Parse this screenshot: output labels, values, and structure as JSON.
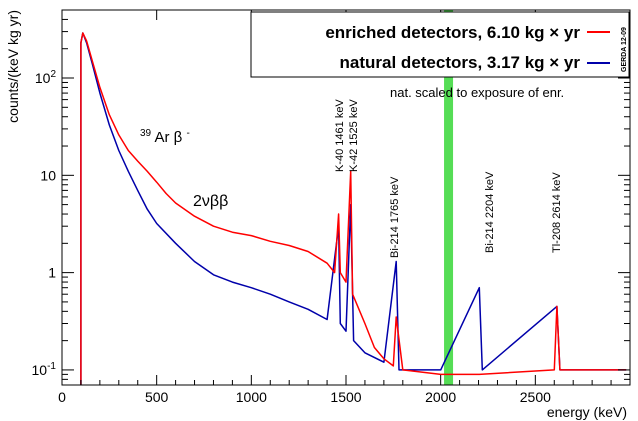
{
  "chart_data": {
    "type": "line",
    "xlabel": "energy (keV)",
    "ylabel": "counts/(keV kg yr)",
    "xlim": [
      0,
      3000
    ],
    "ylim": [
      0.07,
      500
    ],
    "yscale": "log",
    "x_ticks": [
      0,
      500,
      1000,
      1500,
      2000,
      2500
    ],
    "y_ticks": [
      {
        "value": 0.1,
        "base": "10",
        "exp": "-1"
      },
      {
        "value": 1,
        "label": "1"
      },
      {
        "value": 10,
        "label": "10"
      },
      {
        "value": 100,
        "base": "10",
        "exp": "2"
      }
    ],
    "legend_position": "top-right",
    "series": [
      {
        "name": "enriched detectors,  6.10 kg × yr",
        "color": "#ff0000",
        "points": [
          [
            100,
            0.07
          ],
          [
            100,
            230
          ],
          [
            110,
            290
          ],
          [
            130,
            240
          ],
          [
            160,
            150
          ],
          [
            200,
            80
          ],
          [
            250,
            42
          ],
          [
            300,
            26
          ],
          [
            350,
            18
          ],
          [
            400,
            14
          ],
          [
            450,
            11
          ],
          [
            500,
            8.5
          ],
          [
            550,
            6.5
          ],
          [
            600,
            5.2
          ],
          [
            700,
            3.8
          ],
          [
            800,
            3.0
          ],
          [
            900,
            2.6
          ],
          [
            1000,
            2.4
          ],
          [
            1100,
            2.1
          ],
          [
            1200,
            1.9
          ],
          [
            1300,
            1.65
          ],
          [
            1400,
            1.25
          ],
          [
            1440,
            1.0
          ],
          [
            1461,
            4.0
          ],
          [
            1470,
            1.0
          ],
          [
            1500,
            0.8
          ],
          [
            1525,
            11.0
          ],
          [
            1535,
            0.6
          ],
          [
            1600,
            0.3
          ],
          [
            1650,
            0.17
          ],
          [
            1700,
            0.13
          ],
          [
            1750,
            0.11
          ],
          [
            1765,
            0.35
          ],
          [
            1800,
            0.1
          ],
          [
            2000,
            0.09
          ],
          [
            2204,
            0.09
          ],
          [
            2600,
            0.1
          ],
          [
            2614,
            0.45
          ],
          [
            2630,
            0.1
          ],
          [
            2980,
            0.1
          ]
        ]
      },
      {
        "name": "natural detectors,  3.17 kg × yr",
        "color": "#0000aa",
        "points": [
          [
            100,
            0.07
          ],
          [
            100,
            230
          ],
          [
            110,
            290
          ],
          [
            130,
            230
          ],
          [
            160,
            140
          ],
          [
            200,
            70
          ],
          [
            250,
            33
          ],
          [
            300,
            18
          ],
          [
            350,
            11
          ],
          [
            400,
            7
          ],
          [
            450,
            4.5
          ],
          [
            500,
            3.2
          ],
          [
            600,
            2.0
          ],
          [
            700,
            1.3
          ],
          [
            800,
            0.95
          ],
          [
            900,
            0.8
          ],
          [
            1000,
            0.7
          ],
          [
            1100,
            0.6
          ],
          [
            1200,
            0.5
          ],
          [
            1300,
            0.42
          ],
          [
            1400,
            0.33
          ],
          [
            1461,
            3.0
          ],
          [
            1470,
            0.3
          ],
          [
            1500,
            0.25
          ],
          [
            1525,
            5.0
          ],
          [
            1540,
            0.2
          ],
          [
            1600,
            0.15
          ],
          [
            1700,
            0.12
          ],
          [
            1765,
            1.3
          ],
          [
            1780,
            0.1
          ],
          [
            2000,
            0.1
          ],
          [
            2204,
            0.7
          ],
          [
            2220,
            0.1
          ],
          [
            2614,
            0.45
          ],
          [
            2630,
            0.1
          ],
          [
            2980,
            0.1
          ]
        ]
      }
    ],
    "annotations": [
      {
        "text": "nat. scaled to exposure of enr.",
        "x": 2310,
        "y": 150
      },
      {
        "text": "2νββ",
        "x": 820,
        "y": 7
      },
      {
        "text": "K-40  1461 keV",
        "x": 1461,
        "y": 30,
        "rotated": true
      },
      {
        "text": "K-42  1525 keV",
        "x": 1525,
        "y": 30,
        "rotated": true
      },
      {
        "text": "Bi-214  1765 keV",
        "x": 1765,
        "y": 2.5,
        "rotated": true
      },
      {
        "text": "Bi-214  2204 keV",
        "x": 2204,
        "y": 3,
        "rotated": true
      },
      {
        "text": "Tl-208  2614 keV",
        "x": 2614,
        "y": 3,
        "rotated": true
      },
      {
        "text": "GERDA 12-09",
        "rotated": true
      }
    ],
    "ar_label": {
      "sup": "39",
      "main": "Ar  β",
      "sup2": "-"
    },
    "blind_window_keV": 2039
  }
}
